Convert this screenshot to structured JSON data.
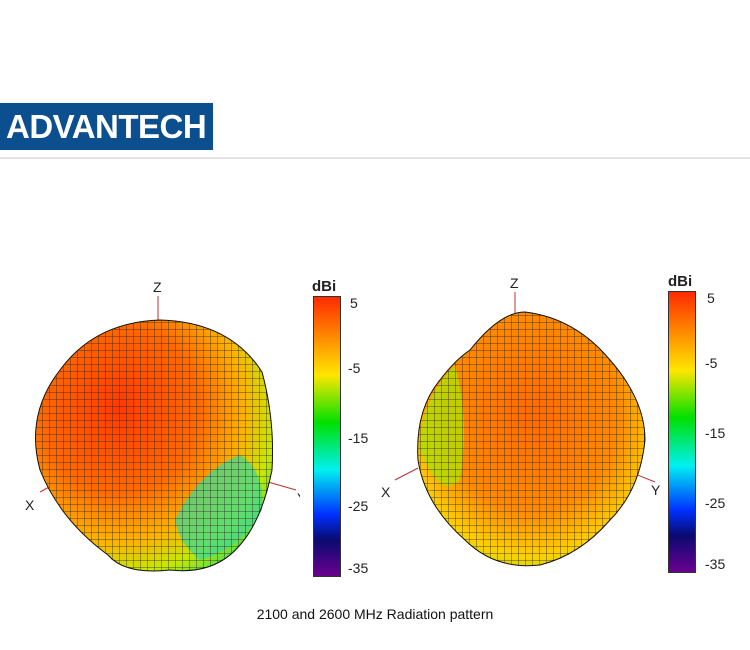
{
  "header": {
    "logo_text": "ADVANTECH",
    "brand_color": "#0c4f8e"
  },
  "plots": [
    {
      "axes": {
        "z": "Z",
        "x": "X",
        "y": "Y"
      },
      "colorbar": {
        "unit": "dBi",
        "ticks": [
          "5",
          "-5",
          "-15",
          "-25",
          "-35"
        ]
      }
    },
    {
      "axes": {
        "z": "Z",
        "x": "X",
        "y": "Y"
      },
      "colorbar": {
        "unit": "dBi",
        "ticks": [
          "5",
          "-5",
          "-15",
          "-25",
          "-35"
        ]
      }
    }
  ],
  "caption": "2100 and 2600 MHz Radiation pattern"
}
